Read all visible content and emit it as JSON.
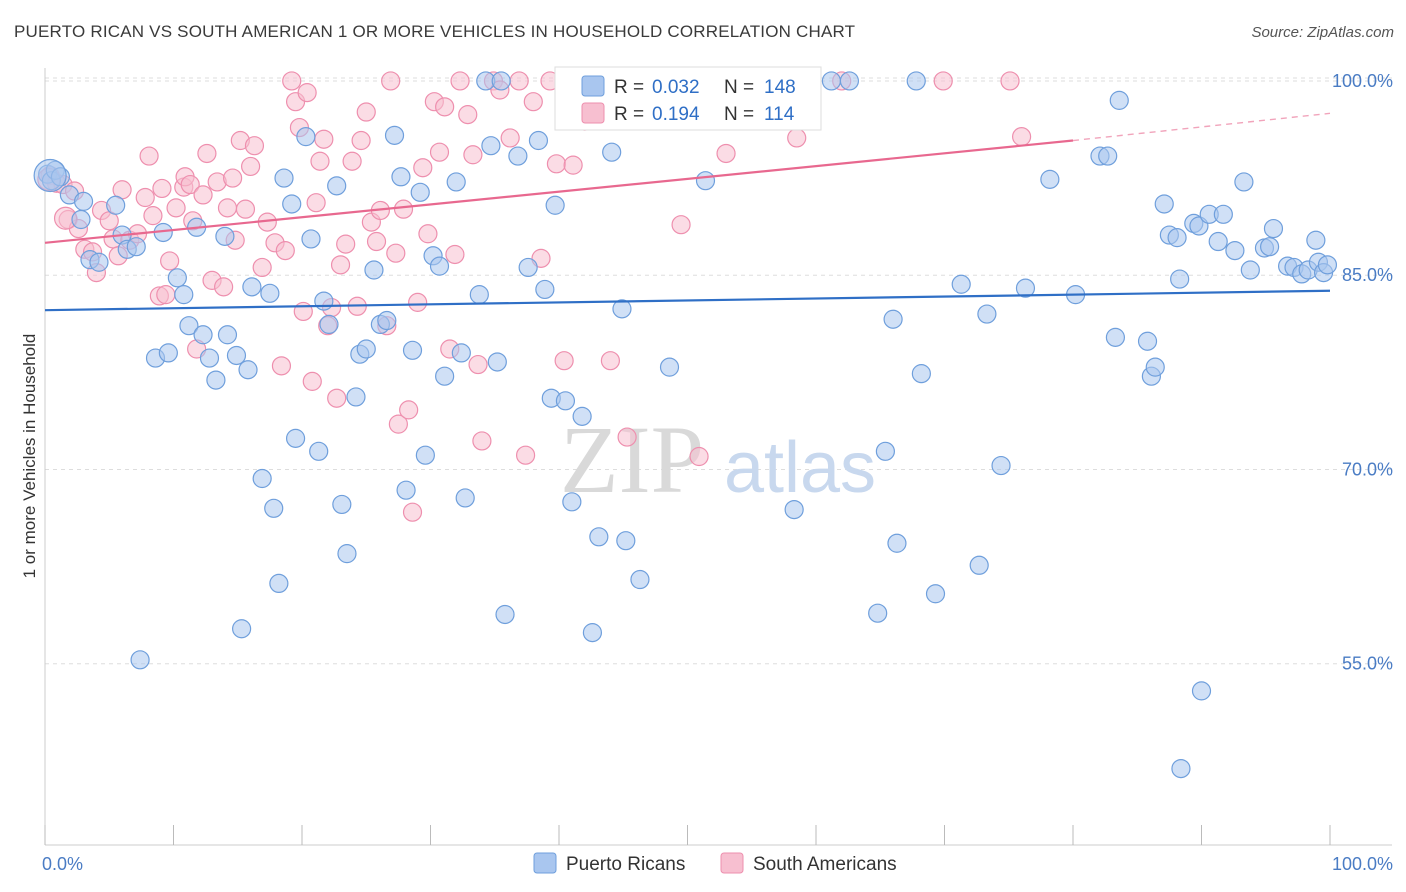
{
  "title": "PUERTO RICAN VS SOUTH AMERICAN 1 OR MORE VEHICLES IN HOUSEHOLD CORRELATION CHART",
  "source": "Source: ZipAtlas.com",
  "watermark": {
    "zip": "ZIP",
    "atlas": "atlas"
  },
  "colors": {
    "blue_fill": "#a9c6ef",
    "blue_stroke": "#6f9fdc",
    "blue_line": "#2f6fc6",
    "pink_fill": "#f7bfd0",
    "pink_stroke": "#ee8fae",
    "pink_line": "#e8688f",
    "tick_text": "#4a7cc4",
    "grid": "#dddddd"
  },
  "legend_top": {
    "rows": [
      {
        "r_label": "R = ",
        "r_value": "0.032",
        "n_label": "N = ",
        "n_value": "148",
        "series": "blue"
      },
      {
        "r_label": "R = ",
        "r_value": "0.194",
        "n_label": "N = ",
        "n_value": "114",
        "series": "pink"
      }
    ]
  },
  "legend_bottom": [
    {
      "label": "Puerto Ricans",
      "series": "blue"
    },
    {
      "label": "South Americans",
      "series": "pink"
    }
  ],
  "chart_data": {
    "type": "scatter",
    "title": "PUERTO RICAN VS SOUTH AMERICAN 1 OR MORE VEHICLES IN HOUSEHOLD CORRELATION CHART",
    "xlabel": "",
    "ylabel": "1 or more Vehicles in Household",
    "xlim": [
      0,
      100
    ],
    "ylim": [
      41,
      101
    ],
    "x_tick_labels": [
      "0.0%",
      "100.0%"
    ],
    "y_ticks": [
      100,
      85,
      70,
      55
    ],
    "y_tick_labels": [
      "100.0%",
      "85.0%",
      "70.0%",
      "55.0%"
    ],
    "grid": true,
    "legend_placement": "top-center",
    "series": [
      {
        "name": "Puerto Ricans",
        "color": "#a9c6ef",
        "trend": {
          "x": [
            0,
            100
          ],
          "y": [
            82.3,
            83.8
          ],
          "dashed_from": null
        },
        "points": [
          [
            0.2,
            92.8
          ],
          [
            0.5,
            92.3
          ],
          [
            0.8,
            93.1
          ],
          [
            1.2,
            92.6
          ],
          [
            1.9,
            91.2
          ],
          [
            2.8,
            89.3
          ],
          [
            3.0,
            90.7
          ],
          [
            3.5,
            86.2
          ],
          [
            4.2,
            86.0
          ],
          [
            5.5,
            90.4
          ],
          [
            6.0,
            88.1
          ],
          [
            6.4,
            87.0
          ],
          [
            7.1,
            87.2
          ],
          [
            7.4,
            55.3
          ],
          [
            8.6,
            78.6
          ],
          [
            9.2,
            88.3
          ],
          [
            9.6,
            79.0
          ],
          [
            10.3,
            84.8
          ],
          [
            10.8,
            83.5
          ],
          [
            11.2,
            81.1
          ],
          [
            11.8,
            88.7
          ],
          [
            12.3,
            80.4
          ],
          [
            12.8,
            78.6
          ],
          [
            13.3,
            76.9
          ],
          [
            14.0,
            88.0
          ],
          [
            14.2,
            80.4
          ],
          [
            14.9,
            78.8
          ],
          [
            15.3,
            57.7
          ],
          [
            15.8,
            77.7
          ],
          [
            16.1,
            84.1
          ],
          [
            16.9,
            69.3
          ],
          [
            17.5,
            83.6
          ],
          [
            17.8,
            67.0
          ],
          [
            18.2,
            61.2
          ],
          [
            18.6,
            92.5
          ],
          [
            19.2,
            90.5
          ],
          [
            19.5,
            72.4
          ],
          [
            20.3,
            95.7
          ],
          [
            20.7,
            87.8
          ],
          [
            21.3,
            71.4
          ],
          [
            21.7,
            83.0
          ],
          [
            22.1,
            81.2
          ],
          [
            22.7,
            91.9
          ],
          [
            23.1,
            67.3
          ],
          [
            23.5,
            63.5
          ],
          [
            24.2,
            75.6
          ],
          [
            24.5,
            78.9
          ],
          [
            25.0,
            79.3
          ],
          [
            25.6,
            85.4
          ],
          [
            26.1,
            81.2
          ],
          [
            26.6,
            81.5
          ],
          [
            27.2,
            95.8
          ],
          [
            27.7,
            92.6
          ],
          [
            28.1,
            68.4
          ],
          [
            28.6,
            79.2
          ],
          [
            29.2,
            91.4
          ],
          [
            29.6,
            71.1
          ],
          [
            30.2,
            86.5
          ],
          [
            30.7,
            85.7
          ],
          [
            31.1,
            77.2
          ],
          [
            32.0,
            92.2
          ],
          [
            32.7,
            67.8
          ],
          [
            32.4,
            79.0
          ],
          [
            33.8,
            83.5
          ],
          [
            34.3,
            100.0
          ],
          [
            34.7,
            95.0
          ],
          [
            35.2,
            78.3
          ],
          [
            35.5,
            100.0
          ],
          [
            35.8,
            58.8
          ],
          [
            36.8,
            94.2
          ],
          [
            37.6,
            85.6
          ],
          [
            38.4,
            95.4
          ],
          [
            38.9,
            83.9
          ],
          [
            39.4,
            75.5
          ],
          [
            39.7,
            90.4
          ],
          [
            40.5,
            75.3
          ],
          [
            41.0,
            67.5
          ],
          [
            41.8,
            74.1
          ],
          [
            42.6,
            57.4
          ],
          [
            43.1,
            64.8
          ],
          [
            44.1,
            94.5
          ],
          [
            45.0,
            100.0
          ],
          [
            44.9,
            82.4
          ],
          [
            45.2,
            64.5
          ],
          [
            46.3,
            61.5
          ],
          [
            47.0,
            100.0
          ],
          [
            48.6,
            77.9
          ],
          [
            51.1,
            100.0
          ],
          [
            51.4,
            92.3
          ],
          [
            58.5,
            100.0
          ],
          [
            59.0,
            100.0
          ],
          [
            58.3,
            66.9
          ],
          [
            61.2,
            100.0
          ],
          [
            62.6,
            100.0
          ],
          [
            64.8,
            58.9
          ],
          [
            65.4,
            71.4
          ],
          [
            66.0,
            81.6
          ],
          [
            66.3,
            64.3
          ],
          [
            67.8,
            100.0
          ],
          [
            68.2,
            77.4
          ],
          [
            69.3,
            60.4
          ],
          [
            71.3,
            84.3
          ],
          [
            72.7,
            62.6
          ],
          [
            73.3,
            82.0
          ],
          [
            74.4,
            70.3
          ],
          [
            76.3,
            84.0
          ],
          [
            78.2,
            92.4
          ],
          [
            80.2,
            83.5
          ],
          [
            82.1,
            94.2
          ],
          [
            82.7,
            94.2
          ],
          [
            83.3,
            80.2
          ],
          [
            83.6,
            98.5
          ],
          [
            85.8,
            79.9
          ],
          [
            86.1,
            77.2
          ],
          [
            86.4,
            77.9
          ],
          [
            87.1,
            90.5
          ],
          [
            87.5,
            88.1
          ],
          [
            88.1,
            87.9
          ],
          [
            88.4,
            46.9
          ],
          [
            88.3,
            84.7
          ],
          [
            89.4,
            89.0
          ],
          [
            89.8,
            88.8
          ],
          [
            90.0,
            52.9
          ],
          [
            90.6,
            89.7
          ],
          [
            91.3,
            87.6
          ],
          [
            91.7,
            89.7
          ],
          [
            92.6,
            86.9
          ],
          [
            93.3,
            92.2
          ],
          [
            93.8,
            85.4
          ],
          [
            94.9,
            87.1
          ],
          [
            95.3,
            87.2
          ],
          [
            95.6,
            88.6
          ],
          [
            96.7,
            85.7
          ],
          [
            97.2,
            85.6
          ],
          [
            97.8,
            85.1
          ],
          [
            98.3,
            85.4
          ],
          [
            98.9,
            87.7
          ],
          [
            99.1,
            86.0
          ],
          [
            99.5,
            85.2
          ],
          [
            99.8,
            85.8
          ]
        ],
        "large_points": [
          [
            0.4,
            92.7
          ]
        ]
      },
      {
        "name": "South Americans",
        "color": "#f7bfd0",
        "trend": {
          "x": [
            0,
            80,
            100
          ],
          "y": [
            87.5,
            95.4,
            97.5
          ],
          "dashed_from": 80
        },
        "points": [
          [
            0.4,
            92.7
          ],
          [
            0.9,
            92.1
          ],
          [
            1.4,
            92.0
          ],
          [
            1.8,
            89.3
          ],
          [
            2.3,
            91.5
          ],
          [
            2.6,
            88.6
          ],
          [
            3.1,
            87.0
          ],
          [
            3.7,
            86.8
          ],
          [
            4.0,
            85.2
          ],
          [
            4.4,
            90.0
          ],
          [
            5.0,
            89.2
          ],
          [
            5.3,
            87.8
          ],
          [
            5.7,
            86.5
          ],
          [
            6.0,
            91.6
          ],
          [
            6.6,
            87.7
          ],
          [
            7.2,
            88.2
          ],
          [
            7.8,
            91.0
          ],
          [
            8.1,
            94.2
          ],
          [
            8.4,
            89.6
          ],
          [
            8.9,
            83.4
          ],
          [
            9.1,
            91.7
          ],
          [
            9.4,
            83.5
          ],
          [
            9.7,
            86.1
          ],
          [
            10.2,
            90.2
          ],
          [
            10.8,
            91.8
          ],
          [
            10.9,
            92.6
          ],
          [
            11.3,
            92.0
          ],
          [
            11.5,
            89.2
          ],
          [
            11.8,
            79.3
          ],
          [
            12.3,
            91.2
          ],
          [
            12.6,
            94.4
          ],
          [
            13.0,
            84.6
          ],
          [
            13.4,
            92.2
          ],
          [
            13.9,
            84.1
          ],
          [
            14.2,
            90.2
          ],
          [
            14.6,
            92.5
          ],
          [
            14.8,
            87.7
          ],
          [
            15.2,
            95.4
          ],
          [
            15.6,
            90.1
          ],
          [
            16.0,
            93.4
          ],
          [
            16.3,
            95.0
          ],
          [
            16.9,
            85.6
          ],
          [
            17.3,
            89.1
          ],
          [
            17.9,
            87.5
          ],
          [
            18.4,
            78.0
          ],
          [
            18.7,
            86.9
          ],
          [
            19.2,
            100.0
          ],
          [
            19.5,
            98.4
          ],
          [
            19.8,
            96.4
          ],
          [
            20.1,
            82.2
          ],
          [
            20.4,
            99.1
          ],
          [
            20.8,
            76.8
          ],
          [
            21.1,
            90.6
          ],
          [
            21.4,
            93.8
          ],
          [
            21.7,
            95.5
          ],
          [
            22.0,
            81.1
          ],
          [
            22.3,
            82.5
          ],
          [
            22.7,
            75.5
          ],
          [
            23.0,
            85.8
          ],
          [
            23.4,
            87.4
          ],
          [
            23.9,
            93.8
          ],
          [
            24.3,
            82.6
          ],
          [
            24.6,
            95.4
          ],
          [
            25.0,
            97.6
          ],
          [
            25.4,
            89.1
          ],
          [
            25.8,
            87.6
          ],
          [
            26.1,
            90.0
          ],
          [
            26.6,
            81.1
          ],
          [
            26.9,
            100.0
          ],
          [
            27.3,
            86.7
          ],
          [
            27.5,
            73.5
          ],
          [
            27.9,
            90.1
          ],
          [
            28.3,
            74.6
          ],
          [
            28.6,
            66.7
          ],
          [
            29.0,
            82.9
          ],
          [
            29.4,
            93.3
          ],
          [
            29.8,
            88.2
          ],
          [
            30.3,
            98.4
          ],
          [
            30.7,
            94.5
          ],
          [
            31.1,
            98.0
          ],
          [
            31.5,
            79.3
          ],
          [
            31.9,
            86.6
          ],
          [
            32.3,
            100.0
          ],
          [
            32.9,
            97.4
          ],
          [
            33.3,
            94.3
          ],
          [
            33.7,
            78.1
          ],
          [
            34.0,
            72.2
          ],
          [
            34.9,
            100.0
          ],
          [
            35.4,
            99.3
          ],
          [
            36.2,
            95.6
          ],
          [
            36.9,
            100.0
          ],
          [
            37.4,
            71.1
          ],
          [
            38.0,
            98.4
          ],
          [
            38.6,
            86.3
          ],
          [
            39.3,
            100.0
          ],
          [
            39.8,
            93.6
          ],
          [
            40.4,
            78.4
          ],
          [
            41.1,
            93.5
          ],
          [
            42.0,
            96.9
          ],
          [
            44.0,
            78.4
          ],
          [
            45.3,
            72.5
          ],
          [
            46.8,
            100.0
          ],
          [
            49.5,
            88.9
          ],
          [
            50.4,
            100.0
          ],
          [
            50.9,
            71.0
          ],
          [
            53.0,
            94.4
          ],
          [
            54.4,
            97.8
          ],
          [
            55.8,
            100.0
          ],
          [
            56.1,
            97.9
          ],
          [
            58.5,
            95.6
          ],
          [
            62.0,
            100.0
          ],
          [
            69.9,
            100.0
          ],
          [
            75.1,
            100.0
          ],
          [
            76.0,
            95.7
          ]
        ],
        "large_points": [
          [
            0.3,
            92.4
          ],
          [
            1.6,
            89.4
          ]
        ]
      }
    ]
  }
}
